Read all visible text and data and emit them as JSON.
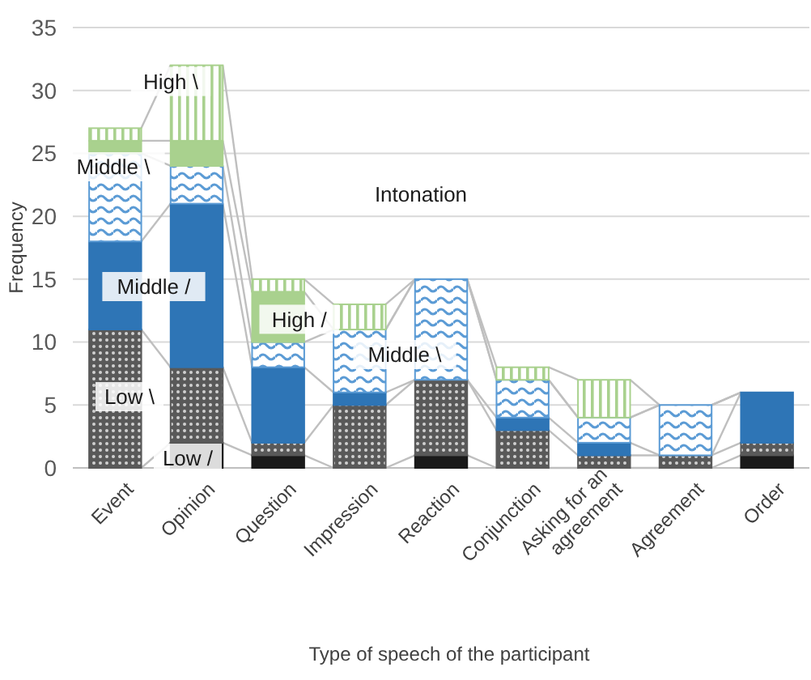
{
  "chart_data": {
    "type": "bar",
    "stacked": true,
    "xlabel": "Type of speech of the participant",
    "ylabel": "Frequency",
    "categories": [
      "Event",
      "Opinion",
      "Question",
      "Impression",
      "Reaction",
      "Conjunction",
      "Asking for an agreement",
      "Agreement",
      "Order"
    ],
    "series": [
      {
        "color": "#1a1a1a",
        "values": [
          0,
          2,
          1,
          0,
          1,
          0,
          0,
          0,
          1
        ]
      },
      {
        "color": "#595959",
        "values": [
          11,
          6,
          1,
          5,
          6,
          3,
          1,
          1,
          1
        ]
      },
      {
        "color": "#2e75b6",
        "values": [
          7,
          13,
          6,
          1,
          0,
          1,
          1,
          0,
          4
        ]
      },
      {
        "color": "#5b9bd5",
        "values": [
          7,
          3,
          2,
          5,
          8,
          3,
          2,
          4,
          0
        ]
      },
      {
        "color": "#a9d18e",
        "values": [
          1,
          2,
          4,
          0,
          0,
          0,
          0,
          0,
          0
        ]
      },
      {
        "color": "#a9d18e",
        "values": [
          1,
          6,
          1,
          2,
          0,
          1,
          3,
          0,
          0
        ]
      }
    ],
    "ylim": [
      0,
      35
    ],
    "yticks": [
      0,
      5,
      10,
      15,
      20,
      25,
      30,
      35
    ],
    "grid": "y",
    "annotations": [
      {
        "text": "High \\",
        "x": "Opinion",
        "y": 32
      },
      "Middle \\",
      "Middle /",
      "Low \\",
      "Low /",
      {
        "text": "High /",
        "x": "Question",
        "y": 14
      },
      "Middle \\",
      "Intonation"
    ]
  }
}
